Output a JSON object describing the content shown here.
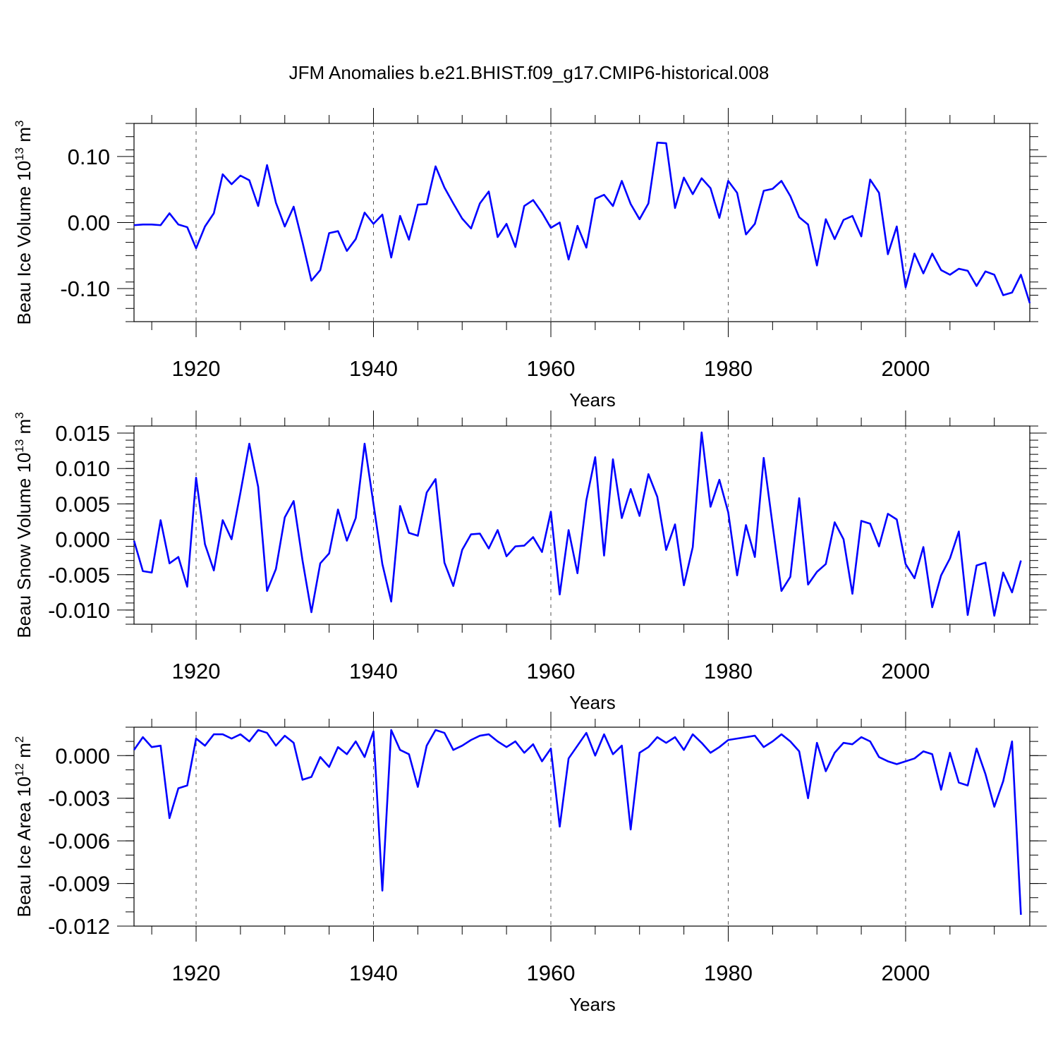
{
  "chart_data": [
    {
      "type": "line",
      "title": "JFM Anomalies b.e21.BHIST.f09_g17.CMIP6-historical.008",
      "xlabel": "Years",
      "ylabel": "Beau Ice Volume 10",
      "ylabel_sup": "13",
      "ylabel_unit": " m",
      "ylabel_unit_sup": "3",
      "xlim": [
        1913,
        2014
      ],
      "ylim": [
        -0.15,
        0.15
      ],
      "yticks": [
        -0.1,
        0.0,
        0.1
      ],
      "ytick_labels": [
        "-0.10",
        "0.00",
        "0.10"
      ],
      "y_minor_step": 0.02,
      "xticks": [
        1920,
        1940,
        1960,
        1980,
        2000
      ],
      "xtick_labels": [
        "1920",
        "1940",
        "1960",
        "1980",
        "2000"
      ],
      "series": [
        {
          "name": "Beau Ice Volume",
          "color": "#0000ff",
          "x_start": 1913,
          "values": [
            -0.004,
            -0.003,
            -0.003,
            -0.004,
            0.014,
            -0.003,
            -0.007,
            -0.039,
            -0.006,
            0.014,
            0.073,
            0.058,
            0.071,
            0.064,
            0.025,
            0.087,
            0.03,
            -0.006,
            0.024,
            -0.03,
            -0.088,
            -0.072,
            -0.016,
            -0.013,
            -0.043,
            -0.025,
            0.015,
            -0.002,
            0.012,
            -0.053,
            0.01,
            -0.026,
            0.027,
            0.028,
            0.085,
            0.053,
            0.029,
            0.006,
            -0.009,
            0.029,
            0.047,
            -0.022,
            -0.002,
            -0.037,
            0.025,
            0.034,
            0.015,
            -0.008,
            0.0,
            -0.056,
            -0.005,
            -0.038,
            0.036,
            0.042,
            0.025,
            0.063,
            0.028,
            0.005,
            0.029,
            0.121,
            0.12,
            0.022,
            0.068,
            0.043,
            0.067,
            0.052,
            0.007,
            0.063,
            0.045,
            -0.018,
            -0.002,
            0.048,
            0.051,
            0.063,
            0.04,
            0.008,
            -0.003,
            -0.065,
            0.005,
            -0.025,
            0.004,
            0.01,
            -0.021,
            0.065,
            0.045,
            -0.048,
            -0.006,
            -0.098,
            -0.047,
            -0.077,
            -0.047,
            -0.072,
            -0.079,
            -0.07,
            -0.073,
            -0.096,
            -0.074,
            -0.079,
            -0.11,
            -0.106,
            -0.079,
            -0.122
          ]
        }
      ]
    },
    {
      "type": "line",
      "xlabel": "Years",
      "ylabel": "Beau Snow Volume 10",
      "ylabel_sup": "13",
      "ylabel_unit": " m",
      "ylabel_unit_sup": "3",
      "xlim": [
        1913,
        2014
      ],
      "ylim": [
        -0.012,
        0.016
      ],
      "yticks": [
        -0.01,
        -0.005,
        0.0,
        0.005,
        0.01,
        0.015
      ],
      "ytick_labels": [
        "-0.010",
        "-0.005",
        "0.000",
        "0.005",
        "0.010",
        "0.015"
      ],
      "y_minor_step": 0.001,
      "xticks": [
        1920,
        1940,
        1960,
        1980,
        2000
      ],
      "xtick_labels": [
        "1920",
        "1940",
        "1960",
        "1980",
        "2000"
      ],
      "series": [
        {
          "name": "Beau Snow Volume",
          "color": "#0000ff",
          "x_start": 1913,
          "values": [
            -0.0002,
            -0.0045,
            -0.0047,
            0.0027,
            -0.0034,
            -0.0025,
            -0.0067,
            0.0087,
            -0.0007,
            -0.0044,
            0.0027,
            0.0,
            0.0066,
            0.0135,
            0.0074,
            -0.0073,
            -0.0042,
            0.0031,
            0.0054,
            -0.003,
            -0.0103,
            -0.0034,
            -0.002,
            0.0042,
            -0.0002,
            0.003,
            0.0135,
            0.005,
            -0.0035,
            -0.0088,
            0.0047,
            0.0009,
            0.0005,
            0.0066,
            0.0085,
            -0.0033,
            -0.0066,
            -0.0015,
            0.0007,
            0.0008,
            -0.0013,
            0.0013,
            -0.0024,
            -0.001,
            -0.0009,
            0.0003,
            -0.0018,
            0.0039,
            -0.0078,
            0.0013,
            -0.0048,
            0.0055,
            0.0116,
            -0.0023,
            0.0113,
            0.003,
            0.0071,
            0.0033,
            0.0092,
            0.006,
            -0.0015,
            0.0021,
            -0.0065,
            -0.0011,
            0.0151,
            0.0046,
            0.0084,
            0.0038,
            -0.0051,
            0.002,
            -0.0025,
            0.0115,
            0.002,
            -0.0073,
            -0.0053,
            0.0058,
            -0.0064,
            -0.0046,
            -0.0035,
            0.0024,
            0.0,
            -0.0077,
            0.0026,
            0.0022,
            -0.001,
            0.0036,
            0.0028,
            -0.0035,
            -0.0055,
            -0.0011,
            -0.0096,
            -0.0051,
            -0.0027,
            0.0011,
            -0.0107,
            -0.0037,
            -0.0033,
            -0.0108,
            -0.0047,
            -0.0075,
            -0.003
          ]
        }
      ]
    },
    {
      "type": "line",
      "xlabel": "Years",
      "ylabel": "Beau Ice Area 10",
      "ylabel_sup": "12",
      "ylabel_unit": " m",
      "ylabel_unit_sup": "2",
      "xlim": [
        1913,
        2014
      ],
      "ylim": [
        -0.012,
        0.002
      ],
      "yticks": [
        -0.012,
        -0.009,
        -0.006,
        -0.003,
        0.0
      ],
      "ytick_labels": [
        "-0.012",
        "-0.009",
        "-0.006",
        "-0.003",
        "0.000"
      ],
      "y_minor_step": 0.001,
      "xticks": [
        1920,
        1940,
        1960,
        1980,
        2000
      ],
      "xtick_labels": [
        "1920",
        "1940",
        "1960",
        "1980",
        "2000"
      ],
      "series": [
        {
          "name": "Beau Ice Area",
          "color": "#0000ff",
          "x_start": 1913,
          "values": [
            0.0004,
            0.0013,
            0.0006,
            0.0007,
            -0.0044,
            -0.0023,
            -0.0021,
            0.0012,
            0.0007,
            0.0015,
            0.0015,
            0.0012,
            0.0015,
            0.001,
            0.0018,
            0.0016,
            0.0007,
            0.0014,
            0.0009,
            -0.0017,
            -0.0015,
            -0.0001,
            -0.0008,
            0.0006,
            0.0001,
            0.001,
            -0.0001,
            0.0017,
            -0.0095,
            0.0018,
            0.0004,
            0.0001,
            -0.0022,
            0.0007,
            0.0018,
            0.0016,
            0.0004,
            0.0007,
            0.0011,
            0.0014,
            0.0015,
            0.001,
            0.0006,
            0.001,
            0.0002,
            0.0008,
            -0.0004,
            0.0005,
            -0.005,
            -0.0002,
            0.0007,
            0.0016,
            0.0,
            0.0015,
            0.0001,
            0.0007,
            -0.0052,
            0.0002,
            0.0006,
            0.0013,
            0.0009,
            0.0013,
            0.0004,
            0.0015,
            0.0009,
            0.0002,
            0.0006,
            0.0011,
            0.0012,
            0.0013,
            0.0014,
            0.0006,
            0.001,
            0.0015,
            0.001,
            0.0003,
            -0.003,
            0.0009,
            -0.0011,
            0.0002,
            0.0009,
            0.0008,
            0.0013,
            0.001,
            -0.0001,
            -0.0004,
            -0.0006,
            -0.0004,
            -0.0002,
            0.0003,
            0.0001,
            -0.0024,
            0.0002,
            -0.0019,
            -0.0021,
            0.0005,
            -0.0013,
            -0.0036,
            -0.0018,
            0.001,
            -0.0112
          ]
        }
      ]
    }
  ]
}
